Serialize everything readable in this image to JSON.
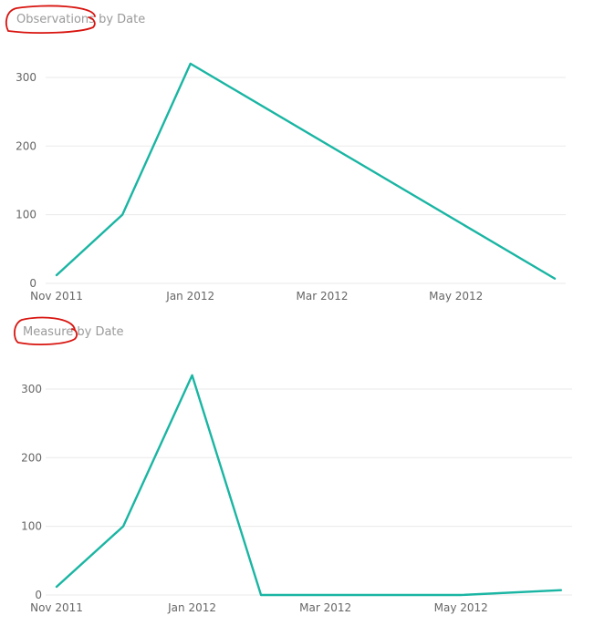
{
  "colors": {
    "series": "#1ab5a3",
    "annotation": "#d8140f",
    "grid": "#eaeaea"
  },
  "chart_data": [
    {
      "type": "line",
      "title": "Observations by Date",
      "title_parts": {
        "highlighted": "Observations",
        "rest": " by Date"
      },
      "x_ticks": [
        "Nov 2011",
        "Jan 2012",
        "Mar 2012",
        "May 2012"
      ],
      "y_ticks": [
        0,
        100,
        200,
        300
      ],
      "ylim": [
        0,
        345
      ],
      "xlim": [
        "2011-11-01",
        "2012-06-20"
      ],
      "grid": true,
      "series": [
        {
          "x": [
            "2011-11-01",
            "2011-12-01",
            "2012-01-01",
            "2012-06-15"
          ],
          "values": [
            12,
            100,
            320,
            7
          ]
        }
      ]
    },
    {
      "type": "line",
      "title": "Measure by Date",
      "title_parts": {
        "highlighted": "Measure",
        "rest": " by Date"
      },
      "x_ticks": [
        "Nov 2011",
        "Jan 2012",
        "Mar 2012",
        "May 2012"
      ],
      "y_ticks": [
        0,
        100,
        200,
        300
      ],
      "ylim": [
        0,
        345
      ],
      "xlim": [
        "2011-11-01",
        "2012-06-20"
      ],
      "grid": true,
      "series": [
        {
          "x": [
            "2011-11-01",
            "2011-12-01",
            "2012-01-01",
            "2012-02-01",
            "2012-03-01",
            "2012-04-01",
            "2012-05-01",
            "2012-06-15"
          ],
          "values": [
            12,
            100,
            320,
            0,
            0,
            0,
            0,
            7
          ]
        }
      ]
    }
  ]
}
